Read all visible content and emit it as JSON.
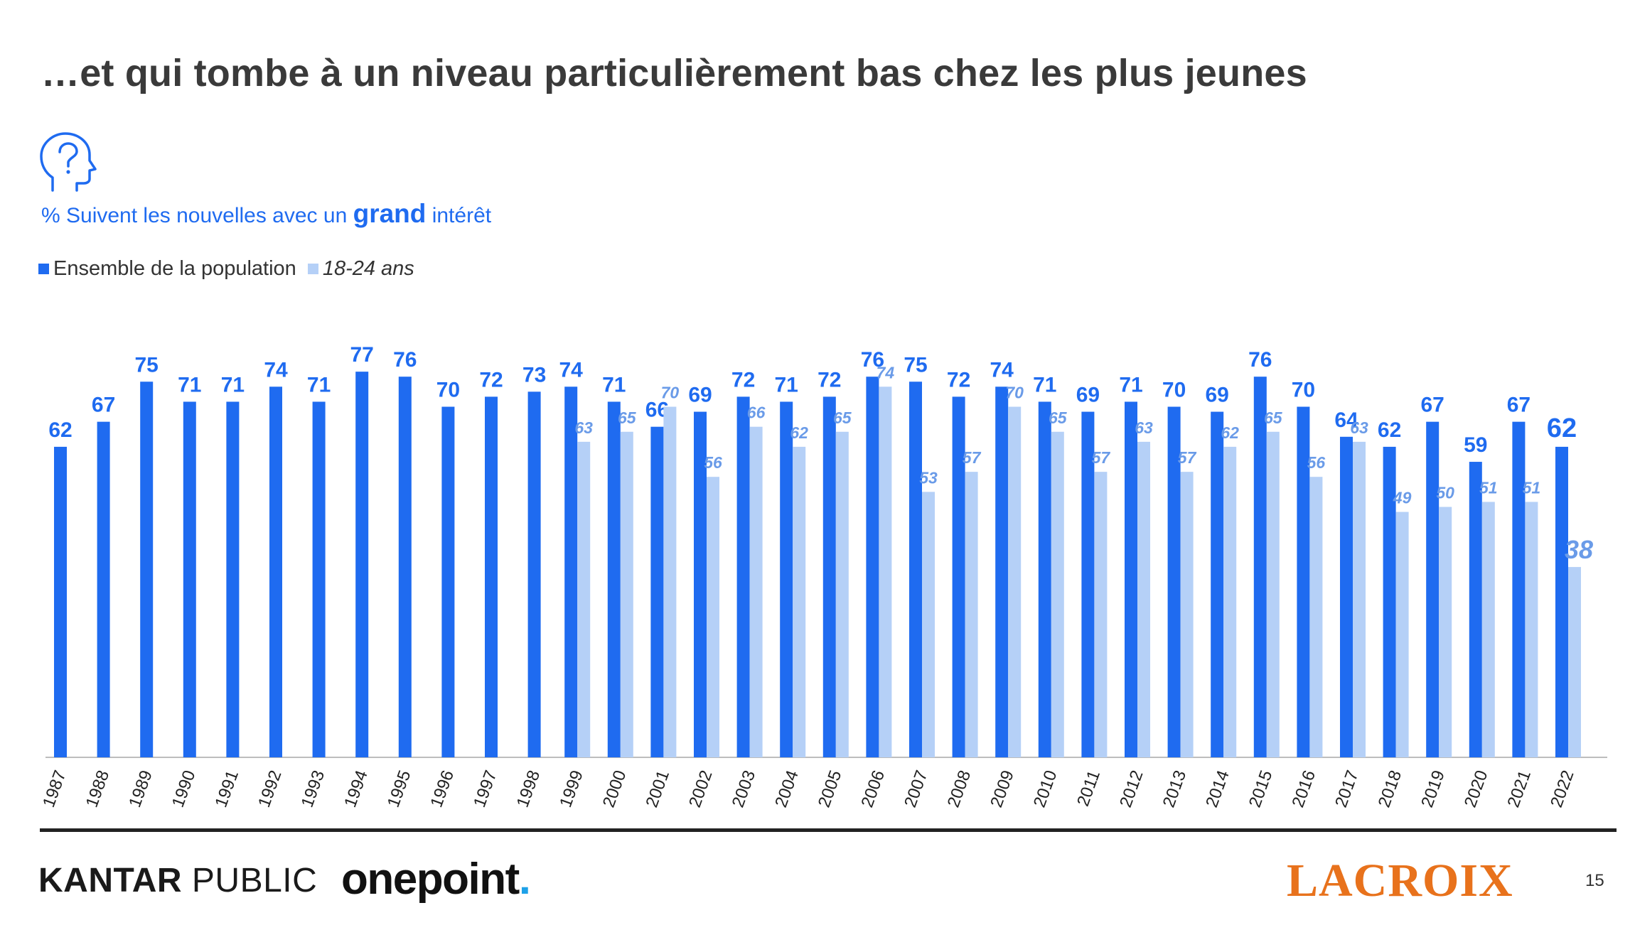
{
  "title": "…et qui tombe à un niveau particulièrement bas chez les plus jeunes",
  "subtitle": {
    "prefix": "% Suivent les nouvelles avec un ",
    "bold": "grand",
    "suffix": " intérêt"
  },
  "icon": "head-question-icon",
  "legend": {
    "series1": "Ensemble de la population",
    "series2": "18-24 ans"
  },
  "colors": {
    "series1": "#1f6bf0",
    "series2": "#b5d0f7",
    "series2_label": "#6a9be8",
    "title": "#3a3a3a",
    "accent": "#1f6bf0",
    "lacroix": "#e8721c",
    "onepoint_dot": "#1ea1e8"
  },
  "chart_data": {
    "type": "bar",
    "categories": [
      "1987",
      "1988",
      "1989",
      "1990",
      "1991",
      "1992",
      "1993",
      "1994",
      "1995",
      "1996",
      "1997",
      "1998",
      "1999",
      "2000",
      "2001",
      "2002",
      "2003",
      "2004",
      "2005",
      "2006",
      "2007",
      "2008",
      "2009",
      "2010",
      "2011",
      "2012",
      "2013",
      "2014",
      "2015",
      "2016",
      "2017",
      "2018",
      "2019",
      "2020",
      "2021",
      "2022"
    ],
    "series": [
      {
        "name": "Ensemble de la population",
        "values": [
          62,
          67,
          75,
          71,
          71,
          74,
          71,
          77,
          76,
          70,
          72,
          73,
          74,
          71,
          66,
          69,
          72,
          71,
          72,
          76,
          75,
          72,
          74,
          71,
          69,
          71,
          70,
          69,
          76,
          70,
          64,
          62,
          67,
          59,
          67,
          62
        ]
      },
      {
        "name": "18-24 ans",
        "values": [
          null,
          null,
          null,
          null,
          null,
          null,
          null,
          null,
          null,
          null,
          null,
          null,
          63,
          65,
          70,
          56,
          66,
          62,
          65,
          74,
          53,
          57,
          70,
          65,
          57,
          63,
          57,
          62,
          65,
          56,
          63,
          49,
          50,
          51,
          51,
          38
        ]
      }
    ],
    "ylim": [
      0,
      77
    ],
    "grid": false,
    "legend_position": "top-left"
  },
  "footer": {
    "kantar_bold": "KANTAR",
    "kantar_rest": " PUBLIC",
    "onepoint": "onepoint",
    "onepoint_dot": ".",
    "lacroix": "LACROIX",
    "page_number": "15"
  }
}
